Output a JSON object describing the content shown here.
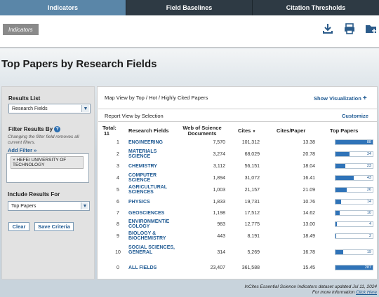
{
  "nav": {
    "tabs": [
      {
        "label": "Indicators",
        "active": true
      },
      {
        "label": "Field Baselines",
        "active": false
      },
      {
        "label": "Citation Thresholds",
        "active": false
      }
    ]
  },
  "header": {
    "breadcrumb": "Indicators",
    "icons": [
      "download-icon",
      "print-icon",
      "add-folder-icon"
    ]
  },
  "page": {
    "title": "Top Papers by Research Fields"
  },
  "left": {
    "results_list_label": "Results List",
    "results_list_value": "Research Fields",
    "filter_label": "Filter Results By",
    "filter_note": "Changing the filter field removes all current filters.",
    "add_filter": "Add Filter »",
    "filter_chip": "× HEFEI UNIVERSITY OF TECHNOLOGY",
    "include_label": "Include Results For",
    "include_value": "Top Papers",
    "clear_button": "Clear",
    "save_button": "Save Criteria"
  },
  "right": {
    "map_view": "Map View by Top / Hot / Highly Cited Papers",
    "show_viz": "Show Visualization",
    "report_view": "Report View by Selection",
    "customize": "Customize",
    "total_label": "Total:",
    "total_value": "11",
    "columns": {
      "field": "Research Fields",
      "docs": "Web of Science Documents",
      "cites": "Cites",
      "cpp": "Cites/Paper",
      "top": "Top Papers"
    },
    "accent": "#2f73b8",
    "rows": [
      {
        "rank": "1",
        "field": "ENGINEERING",
        "docs": "7,570",
        "cites": "101,312",
        "cpp": "13.38",
        "top": 88
      },
      {
        "rank": "2",
        "field": "MATERIALS SCIENCE",
        "docs": "3,274",
        "cites": "68,029",
        "cpp": "20.78",
        "top": 34
      },
      {
        "rank": "3",
        "field": "CHEMISTRY",
        "docs": "3,112",
        "cites": "56,151",
        "cpp": "18.04",
        "top": 23
      },
      {
        "rank": "4",
        "field": "COMPUTER SCIENCE",
        "docs": "1,894",
        "cites": "31,072",
        "cpp": "16.41",
        "top": 43
      },
      {
        "rank": "5",
        "field": "AGRICULTURAL SCIENCES",
        "docs": "1,003",
        "cites": "21,157",
        "cpp": "21.09",
        "top": 26
      },
      {
        "rank": "6",
        "field": "PHYSICS",
        "docs": "1,833",
        "cites": "19,731",
        "cpp": "10.76",
        "top": 14
      },
      {
        "rank": "7",
        "field": "GEOSCIENCES",
        "docs": "1,198",
        "cites": "17,512",
        "cpp": "14.62",
        "top": 10
      },
      {
        "rank": "8",
        "field": "ENVIRONMENT/E COLOGY",
        "docs": "983",
        "cites": "12,775",
        "cpp": "13.00",
        "top": 4
      },
      {
        "rank": "9",
        "field": "BIOLOGY & BIOCHEMISTRY",
        "docs": "443",
        "cites": "8,191",
        "cpp": "18.49",
        "top": 2
      },
      {
        "rank": "10",
        "field": "SOCIAL SCIENCES, GENERAL",
        "docs": "314",
        "cites": "5,269",
        "cpp": "16.78",
        "top": 19
      },
      {
        "rank": "0",
        "field": "ALL FIELDS",
        "docs": "23,407",
        "cites": "361,588",
        "cpp": "15.45",
        "top": 287
      }
    ]
  },
  "footer": {
    "line1": "InCites Essential Science Indicators dataset updated Jul 11, 2024",
    "line2_prefix": "For more information",
    "line2_link": "Click Here"
  }
}
